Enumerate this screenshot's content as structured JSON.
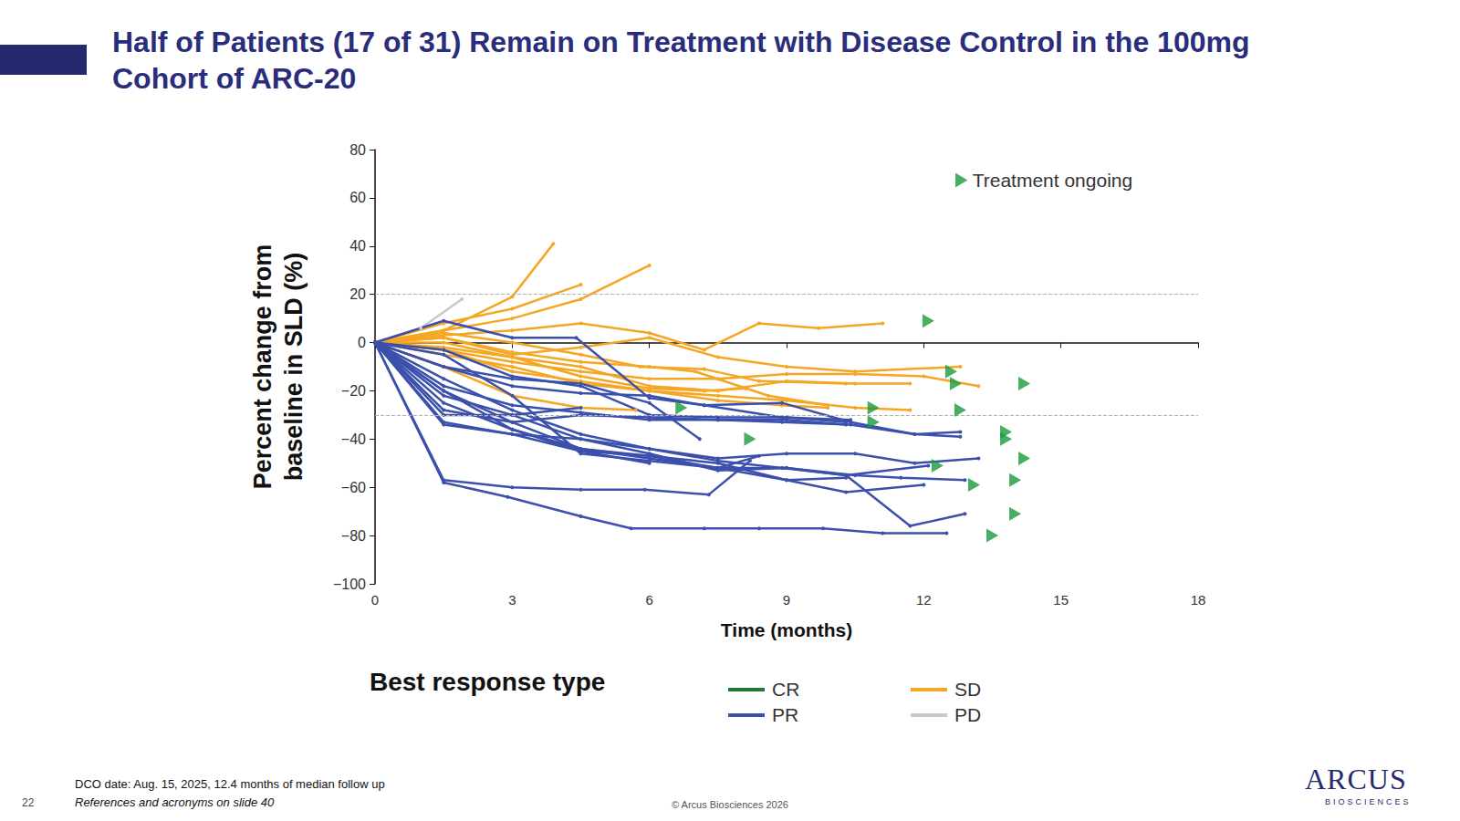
{
  "page": {
    "title": "Half of Patients (17 of 31) Remain on Treatment with Disease Control in the 100mg Cohort of ARC-20",
    "footnote": "DCO date: Aug. 15, 2025, 12.4 months of median follow up",
    "references": "References and acronyms on slide 40",
    "page_number": "22",
    "copyright": "© Arcus Biosciences 2026",
    "logo": "ARCUS",
    "logo_subtitle": "BIOSCIENCES"
  },
  "chart_data": {
    "type": "line",
    "xlabel": "Time (months)",
    "ylabel": "Percent change from baseline in SLD (%)",
    "xlim": [
      0,
      18
    ],
    "xticks": [
      0,
      3,
      6,
      9,
      12,
      15,
      18
    ],
    "ylim": [
      -100,
      80
    ],
    "yticks": [
      {
        "value": -100,
        "label": "−100"
      },
      {
        "value": -80,
        "label": "−80"
      },
      {
        "value": -60,
        "label": "−60"
      },
      {
        "value": -40,
        "label": "−40"
      },
      {
        "value": -20,
        "label": "−20"
      },
      0,
      20,
      40,
      60,
      80
    ],
    "grid": false,
    "marker": "circle",
    "reference_lines": [
      20,
      -30
    ],
    "legend": "bottom",
    "legend_title": "Best response type",
    "series": [
      {
        "name": "CR",
        "color": "#1e7b3a"
      },
      {
        "name": "PR",
        "color": "#3b50ad"
      },
      {
        "name": "SD",
        "color": "#f5a623"
      },
      {
        "name": "PD",
        "color": "#c8c8c8"
      }
    ],
    "patients": [
      {
        "response": "PD",
        "x": [
          0,
          1,
          1.9
        ],
        "values": [
          0,
          6,
          18
        ]
      },
      {
        "response": "SD",
        "x": [
          0,
          1.5,
          3,
          3.9
        ],
        "values": [
          0,
          5,
          19,
          41
        ]
      },
      {
        "response": "SD",
        "x": [
          0,
          1.5,
          3,
          4.5
        ],
        "values": [
          0,
          8,
          14,
          24
        ]
      },
      {
        "response": "SD",
        "x": [
          0,
          1.5,
          3,
          4.5,
          6
        ],
        "values": [
          0,
          5,
          10,
          18,
          32
        ]
      },
      {
        "response": "SD",
        "x": [
          0,
          1.5,
          3,
          4.5,
          6,
          7.2,
          8.4,
          9.7,
          11.1
        ],
        "values": [
          0,
          3,
          5,
          8,
          4,
          -3,
          8,
          6,
          8
        ]
      },
      {
        "response": "SD",
        "x": [
          0,
          1.5,
          3,
          4.5,
          6,
          7.5,
          9,
          10.5,
          12.8
        ],
        "values": [
          0,
          2,
          -5,
          -2,
          2,
          -6,
          -10,
          -12,
          -10
        ]
      },
      {
        "response": "SD",
        "x": [
          0,
          1.5,
          3,
          4.5,
          6,
          7.5,
          9,
          10.5,
          12,
          13.2
        ],
        "values": [
          0,
          -3,
          -8,
          -12,
          -15,
          -15,
          -13,
          -13,
          -14,
          -18
        ]
      },
      {
        "response": "SD",
        "x": [
          0,
          1.5,
          3,
          4.5,
          6,
          7.5,
          9,
          10.5,
          11.7
        ],
        "values": [
          0,
          -2,
          -6,
          -10,
          -18,
          -20,
          -16,
          -17,
          -17
        ]
      },
      {
        "response": "SD",
        "x": [
          0,
          1.5,
          3,
          4.5,
          6,
          7.5,
          9,
          10.5,
          11.7
        ],
        "values": [
          0,
          -5,
          -10,
          -17,
          -20,
          -22,
          -24,
          -27,
          -28
        ]
      },
      {
        "response": "SD",
        "x": [
          0,
          1.5,
          3,
          4.5,
          6,
          7.2,
          8.1
        ],
        "values": [
          0,
          0,
          -6,
          -14,
          -19,
          -20,
          -19
        ]
      },
      {
        "response": "SD",
        "x": [
          0,
          1.5,
          3,
          4.5,
          5.7
        ],
        "values": [
          0,
          -10,
          -22,
          -27,
          -28
        ]
      },
      {
        "response": "SD",
        "x": [
          0,
          1.5,
          3,
          4.5,
          6,
          7.5,
          8.9,
          9.9
        ],
        "values": [
          0,
          -3,
          -12,
          -16,
          -20,
          -24,
          -26,
          -27
        ]
      },
      {
        "response": "SD",
        "x": [
          0,
          1.5,
          3,
          4.5,
          5.8,
          7.2,
          8.4,
          10.3
        ],
        "values": [
          0,
          4,
          0,
          -5,
          -10,
          -11,
          -16,
          -17
        ]
      },
      {
        "response": "SD",
        "x": [
          0,
          1.5,
          3,
          4.5,
          6,
          7,
          8.6,
          9.9
        ],
        "values": [
          0,
          2,
          -4,
          -8,
          -10,
          -12,
          -22,
          -26
        ]
      },
      {
        "response": "PR",
        "x": [
          0,
          1.5,
          3,
          4.5,
          5.9,
          7.3,
          8.2
        ],
        "values": [
          0,
          -57,
          -60,
          -61,
          -61,
          -63,
          -49
        ]
      },
      {
        "response": "PR",
        "x": [
          0,
          1.5,
          2.9,
          4.5,
          5.6,
          7.2,
          8.4,
          9.8,
          11.1,
          12.5
        ],
        "values": [
          0,
          -58,
          -64,
          -72,
          -77,
          -77,
          -77,
          -77,
          -79,
          -79
        ]
      },
      {
        "response": "PR",
        "x": [
          0,
          1.5,
          3,
          4.5,
          6,
          7.5,
          9,
          10.3,
          11.7,
          12.9
        ],
        "values": [
          0,
          -20,
          -33,
          -44,
          -48,
          -52,
          -52,
          -55,
          -76,
          -71
        ]
      },
      {
        "response": "PR",
        "x": [
          0,
          1.5,
          3,
          4.5,
          6,
          7.5,
          9,
          10.3,
          12
        ],
        "values": [
          0,
          -25,
          -36,
          -45,
          -47,
          -50,
          -57,
          -62,
          -59
        ]
      },
      {
        "response": "PR",
        "x": [
          0,
          1.5,
          3,
          4.5,
          6,
          7.5,
          9,
          10.5,
          11.5,
          12.9
        ],
        "values": [
          0,
          -22,
          -30,
          -40,
          -46,
          -53,
          -52,
          -55,
          -56,
          -57
        ]
      },
      {
        "response": "PR",
        "x": [
          0,
          1.5,
          3,
          4.5,
          6,
          7.5,
          9,
          10.5,
          11.8,
          13.2
        ],
        "values": [
          0,
          -15,
          -28,
          -38,
          -44,
          -48,
          -46,
          -46,
          -50,
          -48
        ]
      },
      {
        "response": "PR",
        "x": [
          0,
          1.5,
          3,
          4.5,
          6,
          7.5,
          8.9,
          10.3,
          12.1
        ],
        "values": [
          0,
          -33,
          -38,
          -40,
          -44,
          -49,
          -52,
          -55,
          -51
        ]
      },
      {
        "response": "PR",
        "x": [
          0,
          1.5,
          3,
          4.5,
          6,
          7.5,
          8.9,
          10.4,
          11.8,
          12.8
        ],
        "values": [
          0,
          -18,
          -26,
          -29,
          -32,
          -32,
          -33,
          -34,
          -38,
          -39
        ]
      },
      {
        "response": "PR",
        "x": [
          0,
          1.5,
          3,
          4.5,
          6,
          7.2,
          8.9,
          10.4,
          11.8,
          12.8
        ],
        "values": [
          0,
          -10,
          -18,
          -21,
          -22,
          -26,
          -25,
          -33,
          -38,
          -37
        ]
      },
      {
        "response": "PR",
        "x": [
          0,
          1.5,
          3,
          4.5,
          6,
          7.1
        ],
        "values": [
          0,
          -10,
          -15,
          -17,
          -25,
          -40
        ]
      },
      {
        "response": "PR",
        "x": [
          0,
          1.5,
          3,
          4.4,
          6,
          7.2,
          8.9,
          10.4
        ],
        "values": [
          0,
          9,
          2,
          2,
          -23,
          -26,
          -31,
          -32
        ]
      },
      {
        "response": "PR",
        "x": [
          0,
          1.5,
          3,
          4.5,
          6,
          7.5,
          9,
          10.3
        ],
        "values": [
          0,
          -3,
          -14,
          -18,
          -30,
          -31,
          -31,
          -33
        ]
      },
      {
        "response": "PR",
        "x": [
          0,
          1.5,
          3,
          4.5,
          6,
          7.5,
          9,
          10.3
        ],
        "values": [
          0,
          -28,
          -33,
          -30,
          -31,
          -32,
          -32,
          -34
        ]
      },
      {
        "response": "PR",
        "x": [
          0,
          1.5,
          3,
          4.5,
          6
        ],
        "values": [
          0,
          -34,
          -38,
          -45,
          -50
        ]
      },
      {
        "response": "PR",
        "x": [
          0,
          1.5,
          3,
          4.5
        ],
        "values": [
          0,
          -30,
          -30,
          -27
        ]
      },
      {
        "response": "PR",
        "x": [
          0,
          1.5,
          3,
          4.5,
          6,
          7.5,
          8.4
        ],
        "values": [
          0,
          -20,
          -36,
          -44,
          -47,
          -52,
          -47
        ]
      },
      {
        "response": "PR",
        "x": [
          0,
          1.5,
          3,
          4.5,
          6,
          7.5,
          9,
          10.3
        ],
        "values": [
          0,
          -5,
          -22,
          -46,
          -49,
          -52,
          -57,
          -56
        ]
      }
    ],
    "ongoing": {
      "label": "Treatment ongoing",
      "color": "#1a9a3a",
      "marker": "triangle",
      "x": [
        12.1,
        12.6,
        12.7,
        14.2,
        6.7,
        10.9,
        12.8,
        10.9,
        8.2,
        13.8,
        13.8,
        14.2,
        12.3,
        14.0,
        13.1,
        14.0,
        13.5
      ],
      "y": [
        9,
        -12,
        -17,
        -17,
        -27,
        -27,
        -28,
        -33,
        -40,
        -37,
        -40,
        -48,
        -51,
        -57,
        -59,
        -71,
        -80
      ]
    }
  }
}
